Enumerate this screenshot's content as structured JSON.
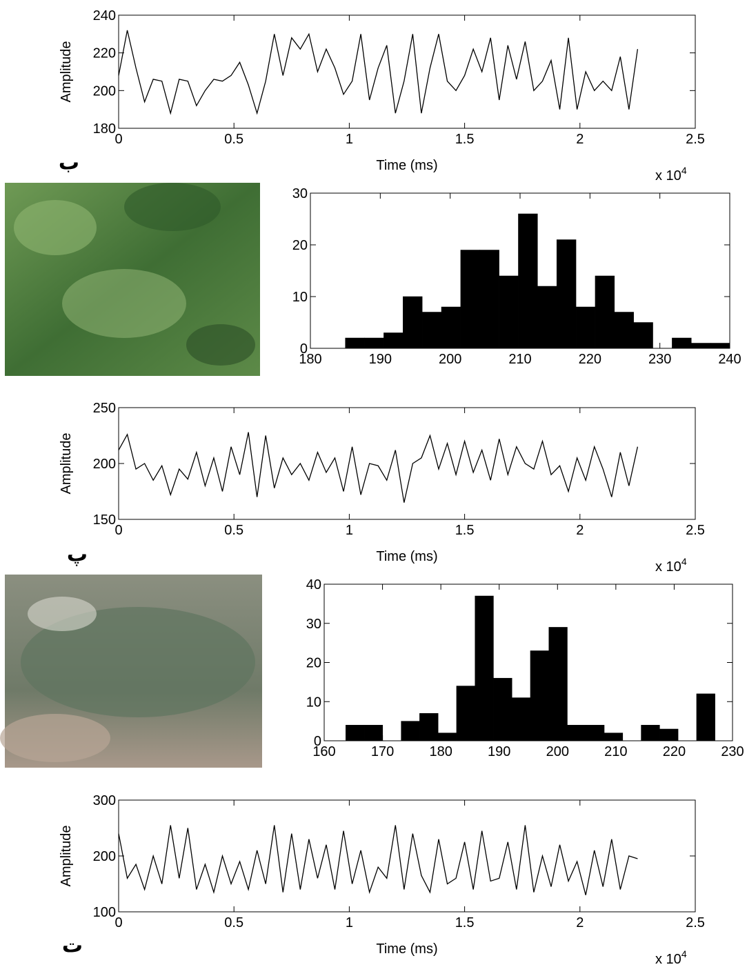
{
  "panel_labels": [
    "ب",
    "پ",
    "ت"
  ],
  "chart_data": [
    {
      "type": "line",
      "xlabel": "Time (ms)",
      "ylabel": "Amplitude",
      "color": "#000000",
      "x_exponent_label": {
        "text": "x 10",
        "exponent": "4"
      },
      "xlim": [
        0,
        25000
      ],
      "ylim": [
        180,
        240
      ],
      "xticks": [
        0,
        {
          "value": 5000,
          "label": "0.5"
        },
        {
          "value": 10000,
          "label": "1"
        },
        {
          "value": 15000,
          "label": "1.5"
        },
        {
          "value": 20000,
          "label": "2"
        },
        {
          "value": 25000,
          "label": "2.5"
        }
      ],
      "yticks": [
        180,
        200,
        220,
        240
      ],
      "x": [
        0,
        375,
        750,
        1125,
        1500,
        1875,
        2250,
        2625,
        3000,
        3375,
        3750,
        4125,
        4500,
        4875,
        5250,
        5625,
        6000,
        6375,
        6750,
        7125,
        7500,
        7875,
        8250,
        8625,
        9000,
        9375,
        9750,
        10125,
        10500,
        10875,
        11250,
        11625,
        12000,
        12375,
        12750,
        13125,
        13500,
        13875,
        14250,
        14625,
        15000,
        15375,
        15750,
        16125,
        16500,
        16875,
        17250,
        17625,
        18000,
        18375,
        18750,
        19125,
        19500,
        19875,
        20250,
        20625,
        21000,
        21375,
        21750,
        22125,
        22500
      ],
      "values": [
        208,
        232,
        212,
        194,
        206,
        205,
        188,
        206,
        205,
        192,
        200,
        206,
        205,
        208,
        215,
        203,
        188,
        205,
        230,
        208,
        228,
        222,
        230,
        210,
        222,
        212,
        198,
        205,
        230,
        195,
        212,
        224,
        188,
        205,
        230,
        188,
        212,
        230,
        205,
        200,
        208,
        222,
        210,
        228,
        195,
        224,
        206,
        226,
        200,
        205,
        216,
        190,
        228,
        190,
        210,
        200,
        205,
        200,
        218,
        190,
        222
      ]
    },
    {
      "type": "histogram",
      "color": "#000000",
      "xlim": [
        180,
        240
      ],
      "ylim": [
        0,
        30
      ],
      "xticks": [
        180,
        190,
        200,
        210,
        220,
        230,
        240
      ],
      "yticks": [
        0,
        10,
        20,
        30
      ],
      "bins": [
        185,
        187.75,
        190.5,
        193.25,
        196,
        198.75,
        201.5,
        204.25,
        207,
        209.75,
        212.5,
        215.25,
        218,
        220.75,
        223.5,
        226.25,
        229,
        231.75,
        234.5,
        237.25,
        240
      ],
      "values": [
        2,
        2,
        3,
        10,
        7,
        8,
        19,
        19,
        14,
        26,
        12,
        21,
        8,
        14,
        7,
        5,
        0,
        2,
        1,
        1
      ]
    },
    {
      "type": "line",
      "xlabel": "Time (ms)",
      "ylabel": "Amplitude",
      "color": "#000000",
      "x_exponent_label": {
        "text": "x 10",
        "exponent": "4"
      },
      "xlim": [
        0,
        25000
      ],
      "ylim": [
        150,
        250
      ],
      "xticks": [
        0,
        {
          "value": 5000,
          "label": "0.5"
        },
        {
          "value": 10000,
          "label": "1"
        },
        {
          "value": 15000,
          "label": "1.5"
        },
        {
          "value": 20000,
          "label": "2"
        },
        {
          "value": 25000,
          "label": "2.5"
        }
      ],
      "yticks": [
        150,
        200,
        250
      ],
      "x": [
        0,
        375,
        750,
        1125,
        1500,
        1875,
        2250,
        2625,
        3000,
        3375,
        3750,
        4125,
        4500,
        4875,
        5250,
        5625,
        6000,
        6375,
        6750,
        7125,
        7500,
        7875,
        8250,
        8625,
        9000,
        9375,
        9750,
        10125,
        10500,
        10875,
        11250,
        11625,
        12000,
        12375,
        12750,
        13125,
        13500,
        13875,
        14250,
        14625,
        15000,
        15375,
        15750,
        16125,
        16500,
        16875,
        17250,
        17625,
        18000,
        18375,
        18750,
        19125,
        19500,
        19875,
        20250,
        20625,
        21000,
        21375,
        21750,
        22125,
        22500
      ],
      "values": [
        212,
        226,
        195,
        200,
        185,
        198,
        172,
        195,
        186,
        210,
        180,
        205,
        175,
        215,
        190,
        228,
        170,
        225,
        178,
        205,
        190,
        200,
        185,
        210,
        192,
        205,
        175,
        215,
        172,
        200,
        198,
        185,
        212,
        165,
        200,
        205,
        225,
        195,
        218,
        190,
        220,
        192,
        212,
        185,
        222,
        190,
        215,
        200,
        195,
        220,
        190,
        198,
        175,
        205,
        185,
        215,
        195,
        170,
        210,
        180,
        215
      ]
    },
    {
      "type": "histogram",
      "color": "#000000",
      "xlim": [
        160,
        230
      ],
      "ylim": [
        0,
        40
      ],
      "xticks": [
        160,
        170,
        180,
        190,
        200,
        210,
        220,
        230
      ],
      "yticks": [
        0,
        10,
        20,
        30,
        40
      ],
      "bins": [
        163.7,
        166.87,
        170.03,
        173.2,
        176.36,
        179.53,
        182.69,
        185.86,
        189.02,
        192.19,
        195.35,
        198.52,
        201.68,
        204.85,
        208.01,
        211.18,
        214.34,
        217.51,
        220.67,
        223.84,
        227
      ],
      "values": [
        4,
        4,
        0,
        5,
        7,
        2,
        14,
        37,
        16,
        11,
        23,
        29,
        4,
        4,
        2,
        0,
        4,
        3,
        0,
        12
      ]
    },
    {
      "type": "line",
      "xlabel": "Time (ms)",
      "ylabel": "Amplitude",
      "color": "#000000",
      "x_exponent_label": {
        "text": "x 10",
        "exponent": "4"
      },
      "xlim": [
        0,
        25000
      ],
      "ylim": [
        100,
        300
      ],
      "xticks": [
        0,
        {
          "value": 5000,
          "label": "0.5"
        },
        {
          "value": 10000,
          "label": "1"
        },
        {
          "value": 15000,
          "label": "1.5"
        },
        {
          "value": 20000,
          "label": "2"
        },
        {
          "value": 25000,
          "label": "2.5"
        }
      ],
      "yticks": [
        100,
        200,
        300
      ],
      "x": [
        0,
        375,
        750,
        1125,
        1500,
        1875,
        2250,
        2625,
        3000,
        3375,
        3750,
        4125,
        4500,
        4875,
        5250,
        5625,
        6000,
        6375,
        6750,
        7125,
        7500,
        7875,
        8250,
        8625,
        9000,
        9375,
        9750,
        10125,
        10500,
        10875,
        11250,
        11625,
        12000,
        12375,
        12750,
        13125,
        13500,
        13875,
        14250,
        14625,
        15000,
        15375,
        15750,
        16125,
        16500,
        16875,
        17250,
        17625,
        18000,
        18375,
        18750,
        19125,
        19500,
        19875,
        20250,
        20625,
        21000,
        21375,
        21750,
        22125,
        22500
      ],
      "values": [
        240,
        160,
        185,
        140,
        200,
        150,
        255,
        160,
        250,
        140,
        185,
        135,
        200,
        150,
        190,
        140,
        210,
        150,
        255,
        135,
        240,
        140,
        230,
        160,
        220,
        140,
        245,
        150,
        210,
        135,
        180,
        160,
        255,
        140,
        240,
        165,
        135,
        230,
        150,
        160,
        225,
        140,
        245,
        155,
        160,
        225,
        140,
        255,
        135,
        200,
        145,
        220,
        155,
        190,
        130,
        210,
        145,
        230,
        140,
        200,
        195
      ]
    }
  ]
}
